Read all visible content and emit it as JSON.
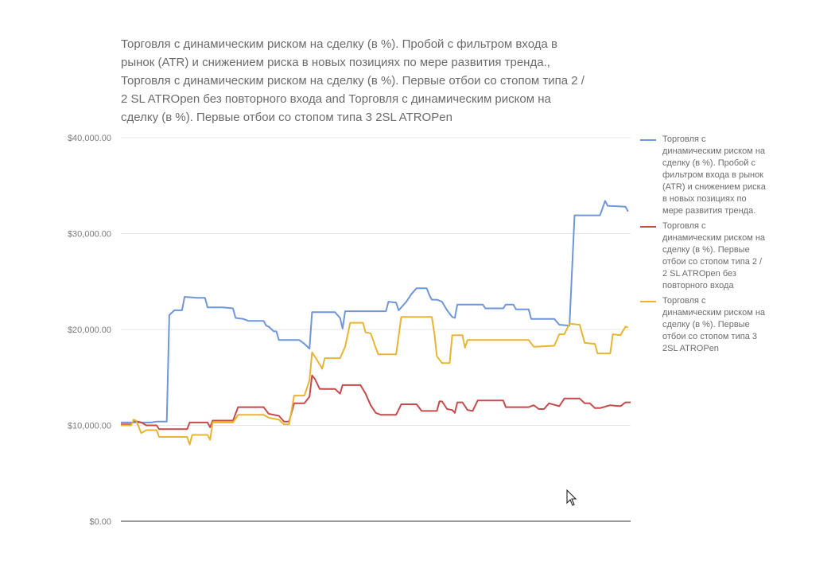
{
  "chart_data": {
    "type": "line",
    "title_lines": [
      "Торговля с динамическим риском на сделку (в %). Пробой с фильтром входа в",
      "рынок (ATR) и снижением риска в новых позициях по мере развития тренда.,",
      "Торговля с динамическим риском на сделку (в %). Первые отбои со стопом типа 2 /",
      "2 SL ATROpen без повторного входа and Торговля с динамическим риском на",
      "сделку (в %). Первые отбои со стопом типа 3 2SL ATROPen"
    ],
    "ylim": [
      0,
      40000
    ],
    "y_ticks": [
      {
        "value": 0,
        "label": "$0.00"
      },
      {
        "value": 10000,
        "label": "$10,000.00"
      },
      {
        "value": 20000,
        "label": "$20,000.00"
      },
      {
        "value": 30000,
        "label": "$30,000.00"
      },
      {
        "value": 40000,
        "label": "$40,000.00"
      }
    ],
    "grid": true,
    "legend_position": "right",
    "x_range": [
      0,
      100
    ],
    "series": [
      {
        "name_lines": [
          "Торговля с",
          "динамическим риском на",
          "сделку (в %). Пробой с",
          "фильтром входа в рынок",
          "(ATR) и снижением риска",
          "в новых позициях по",
          "мере развития тренда."
        ],
        "color": "#6f96d8",
        "points": [
          [
            0,
            10300
          ],
          [
            6,
            10300
          ],
          [
            7,
            10400
          ],
          [
            9,
            10400
          ],
          [
            9.5,
            21500
          ],
          [
            10.5,
            22000
          ],
          [
            12,
            22000
          ],
          [
            12.5,
            23400
          ],
          [
            15,
            23300
          ],
          [
            16.5,
            23300
          ],
          [
            17,
            22300
          ],
          [
            20,
            22300
          ],
          [
            22,
            22200
          ],
          [
            22.5,
            21200
          ],
          [
            24,
            21100
          ],
          [
            25,
            20900
          ],
          [
            28,
            20900
          ],
          [
            28.5,
            20400
          ],
          [
            29,
            20300
          ],
          [
            30,
            19800
          ],
          [
            30.5,
            19800
          ],
          [
            31,
            18900
          ],
          [
            35,
            18900
          ],
          [
            36,
            18500
          ],
          [
            37,
            18000
          ],
          [
            37.5,
            21800
          ],
          [
            42,
            21800
          ],
          [
            43,
            21200
          ],
          [
            43.5,
            20100
          ],
          [
            44,
            21900
          ],
          [
            52,
            21900
          ],
          [
            52.5,
            22900
          ],
          [
            54,
            22800
          ],
          [
            54.5,
            22000
          ],
          [
            56,
            22900
          ],
          [
            57,
            23700
          ],
          [
            58,
            24300
          ],
          [
            60,
            24300
          ],
          [
            60.5,
            23600
          ],
          [
            61,
            23100
          ],
          [
            62,
            23100
          ],
          [
            63,
            22900
          ],
          [
            64,
            22000
          ],
          [
            65,
            21300
          ],
          [
            65.5,
            21200
          ],
          [
            66,
            22600
          ],
          [
            71,
            22600
          ],
          [
            71.5,
            22200
          ],
          [
            75,
            22200
          ],
          [
            75.5,
            22600
          ],
          [
            77,
            22600
          ],
          [
            77.5,
            22100
          ],
          [
            80,
            22100
          ],
          [
            80.5,
            21100
          ],
          [
            85,
            21100
          ],
          [
            86,
            20500
          ],
          [
            88,
            20400
          ],
          [
            89,
            31900
          ],
          [
            94,
            31900
          ],
          [
            95,
            33400
          ],
          [
            95.5,
            32900
          ],
          [
            99,
            32800
          ],
          [
            99.5,
            32300
          ]
        ]
      },
      {
        "name_lines": [
          "Торговля с",
          "динамическим риском на",
          "сделку (в %). Первые",
          "отбои со стопом типа 2 /",
          "2 SL ATROpen без",
          "повторного входа"
        ],
        "color": "#c44b4b",
        "points": [
          [
            0,
            10100
          ],
          [
            2,
            10100
          ],
          [
            2.5,
            10500
          ],
          [
            4,
            10300
          ],
          [
            5,
            10000
          ],
          [
            7,
            10000
          ],
          [
            7.5,
            9600
          ],
          [
            13,
            9600
          ],
          [
            13.5,
            10300
          ],
          [
            17,
            10300
          ],
          [
            17.5,
            9800
          ],
          [
            18,
            10500
          ],
          [
            22,
            10500
          ],
          [
            23,
            11900
          ],
          [
            28,
            11900
          ],
          [
            29,
            11200
          ],
          [
            31,
            11000
          ],
          [
            32,
            10400
          ],
          [
            33,
            10400
          ],
          [
            34,
            12300
          ],
          [
            36,
            12300
          ],
          [
            37,
            13000
          ],
          [
            37.5,
            15200
          ],
          [
            38,
            14900
          ],
          [
            39,
            13800
          ],
          [
            42,
            13800
          ],
          [
            43,
            13300
          ],
          [
            43.5,
            14200
          ],
          [
            47,
            14200
          ],
          [
            48,
            13300
          ],
          [
            49,
            12100
          ],
          [
            50,
            11300
          ],
          [
            51,
            11100
          ],
          [
            54,
            11100
          ],
          [
            55,
            12200
          ],
          [
            58,
            12200
          ],
          [
            59,
            11500
          ],
          [
            62,
            11500
          ],
          [
            62.5,
            12500
          ],
          [
            63,
            12500
          ],
          [
            64,
            11700
          ],
          [
            65,
            11600
          ],
          [
            65.5,
            11300
          ],
          [
            66,
            12400
          ],
          [
            67,
            12400
          ],
          [
            68,
            11600
          ],
          [
            69,
            11500
          ],
          [
            70,
            12600
          ],
          [
            75,
            12600
          ],
          [
            75.5,
            11900
          ],
          [
            80,
            11900
          ],
          [
            81,
            12100
          ],
          [
            82,
            11700
          ],
          [
            83,
            11700
          ],
          [
            84,
            12300
          ],
          [
            86,
            12000
          ],
          [
            87,
            12800
          ],
          [
            90,
            12800
          ],
          [
            91,
            12300
          ],
          [
            92,
            12300
          ],
          [
            93,
            11800
          ],
          [
            94,
            11800
          ],
          [
            96,
            12100
          ],
          [
            98,
            12000
          ],
          [
            99,
            12400
          ],
          [
            100,
            12400
          ]
        ]
      },
      {
        "name_lines": [
          "Торговля с",
          "динамическим риском на",
          "сделку (в %). Первые",
          "отбои со стопом типа 3",
          "2SL ATROPen"
        ],
        "color": "#e8b532",
        "points": [
          [
            0,
            10000
          ],
          [
            2,
            10000
          ],
          [
            2.5,
            10600
          ],
          [
            3,
            10500
          ],
          [
            4,
            9200
          ],
          [
            5,
            9500
          ],
          [
            7,
            9500
          ],
          [
            7.5,
            8800
          ],
          [
            13,
            8800
          ],
          [
            13.5,
            8000
          ],
          [
            14,
            9000
          ],
          [
            17,
            9000
          ],
          [
            17.5,
            8500
          ],
          [
            18,
            10300
          ],
          [
            22,
            10300
          ],
          [
            23,
            11100
          ],
          [
            28,
            11100
          ],
          [
            29,
            10800
          ],
          [
            31,
            10600
          ],
          [
            32,
            10100
          ],
          [
            33,
            10100
          ],
          [
            34,
            13100
          ],
          [
            36,
            13100
          ],
          [
            37,
            14700
          ],
          [
            37.5,
            17600
          ],
          [
            38.5,
            16800
          ],
          [
            39.5,
            15900
          ],
          [
            40,
            17000
          ],
          [
            43,
            17000
          ],
          [
            44,
            18200
          ],
          [
            45,
            20700
          ],
          [
            47.5,
            20700
          ],
          [
            48,
            19700
          ],
          [
            49,
            19600
          ],
          [
            50,
            18100
          ],
          [
            50.5,
            17400
          ],
          [
            54,
            17400
          ],
          [
            55,
            21300
          ],
          [
            61,
            21300
          ],
          [
            61.5,
            19600
          ],
          [
            62,
            17200
          ],
          [
            63,
            16500
          ],
          [
            64.5,
            16500
          ],
          [
            65,
            19400
          ],
          [
            67,
            19400
          ],
          [
            67.5,
            18100
          ],
          [
            68,
            18900
          ],
          [
            80,
            18900
          ],
          [
            81,
            18200
          ],
          [
            85,
            18300
          ],
          [
            86,
            19500
          ],
          [
            87,
            19500
          ],
          [
            88,
            20600
          ],
          [
            90,
            20500
          ],
          [
            91,
            18600
          ],
          [
            93,
            18500
          ],
          [
            93.5,
            17500
          ],
          [
            96,
            17500
          ],
          [
            96.5,
            19500
          ],
          [
            98,
            19400
          ],
          [
            99,
            20300
          ],
          [
            99.5,
            20200
          ]
        ]
      }
    ]
  }
}
